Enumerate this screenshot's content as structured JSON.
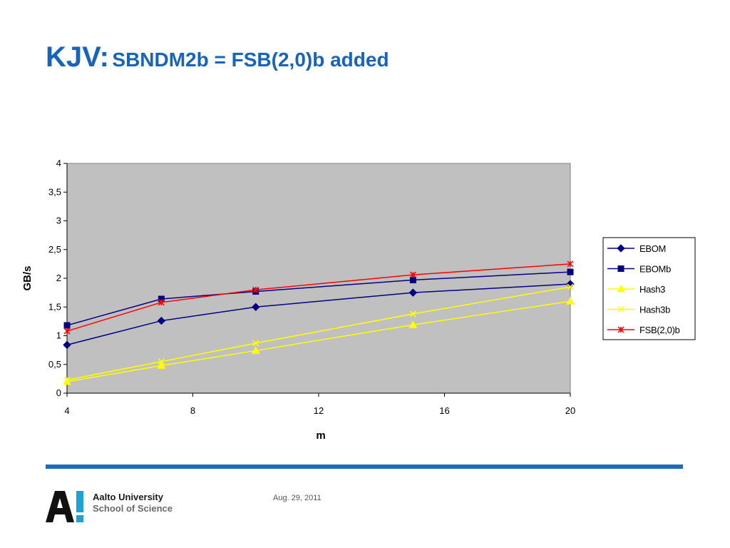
{
  "slide": {
    "title_main": "KJV:",
    "title_sub": "SBNDM2b = FSB(2,0)b added",
    "date": "Aug. 29, 2011",
    "logo": {
      "university": "Aalto University",
      "school": "School of Science",
      "mark": "A!"
    }
  },
  "colors": {
    "title": "#1565c0",
    "rule": "#1e6bbd",
    "plot_bg": "#c0c0c0",
    "logo_accent": "#1aa3d9"
  },
  "chart_data": {
    "type": "line",
    "title": "",
    "xlabel": "m",
    "ylabel": "GB/s",
    "xlim": [
      4,
      20
    ],
    "ylim": [
      0,
      4
    ],
    "x_ticks": [
      "4",
      "8",
      "12",
      "16",
      "20"
    ],
    "y_ticks": [
      "0",
      "0,5",
      "1",
      "1,5",
      "2",
      "2,5",
      "3",
      "3,5",
      "4"
    ],
    "grid": false,
    "legend_position": "right",
    "plot_background": "#c0c0c0",
    "series": [
      {
        "name": "EBOM",
        "color": "#000080",
        "marker": "diamond",
        "x": [
          4,
          7,
          10,
          15,
          20
        ],
        "y": [
          0.84,
          1.26,
          1.5,
          1.75,
          1.9
        ]
      },
      {
        "name": "EBOMb",
        "color": "#000080",
        "marker": "square",
        "x": [
          4,
          7,
          10,
          15,
          20
        ],
        "y": [
          1.18,
          1.64,
          1.77,
          1.97,
          2.11
        ]
      },
      {
        "name": "Hash3",
        "color": "#ffff00",
        "marker": "triangle",
        "x": [
          4,
          7,
          10,
          15,
          20
        ],
        "y": [
          0.2,
          0.48,
          0.74,
          1.19,
          1.6
        ]
      },
      {
        "name": "Hash3b",
        "color": "#ffff00",
        "marker": "x",
        "x": [
          4,
          7,
          10,
          15,
          20
        ],
        "y": [
          0.23,
          0.55,
          0.87,
          1.38,
          1.85
        ]
      },
      {
        "name": "FSB(2,0)b",
        "color": "#ff0000",
        "marker": "star",
        "x": [
          4,
          7,
          10,
          15,
          20
        ],
        "y": [
          1.08,
          1.58,
          1.8,
          2.06,
          2.25
        ]
      }
    ]
  }
}
